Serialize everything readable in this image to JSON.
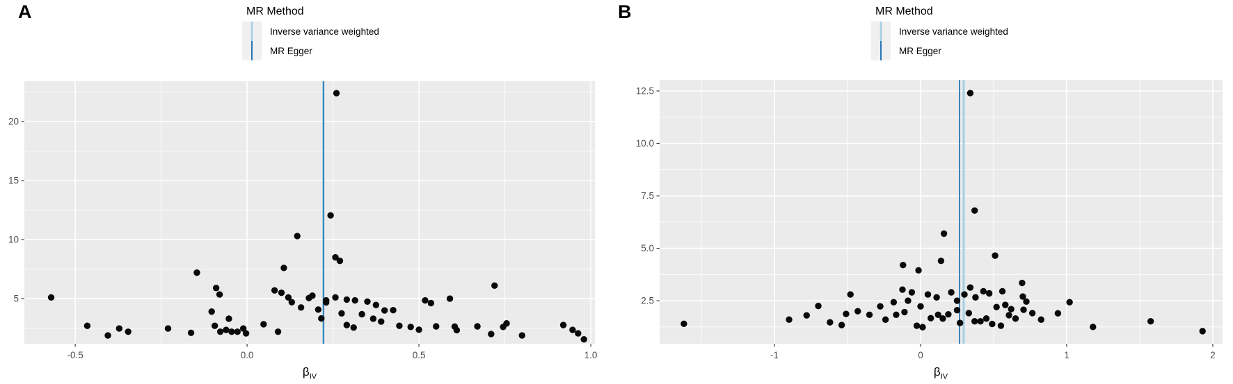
{
  "colors": {
    "background": "#ffffff",
    "panel_background": "#ebebeb",
    "grid": "#ffffff",
    "point": "#0a0a0a",
    "tick_text": "#4d4d4d",
    "tick_mark": "#333333",
    "ivw_line": "#a6cee3",
    "egger_line": "#2777b4",
    "legend_key_background": "#f0f0f0"
  },
  "panels": [
    {
      "label": "A",
      "legend_title": "MR Method",
      "legend_items": [
        {
          "label": "Inverse variance weighted",
          "color": "#a6cee3"
        },
        {
          "label": "MR Egger",
          "color": "#2777b4"
        }
      ],
      "xlabel_main": "β",
      "xlabel_sub": "IV"
    },
    {
      "label": "B",
      "legend_title": "MR Method",
      "legend_items": [
        {
          "label": "Inverse variance weighted",
          "color": "#a6cee3"
        },
        {
          "label": "MR Egger",
          "color": "#2777b4"
        }
      ],
      "xlabel_main": "β",
      "xlabel_sub": "IV"
    }
  ],
  "chart_data": [
    {
      "type": "scatter",
      "title": "A",
      "xlabel": "βIV",
      "ylabel": "",
      "legend_position": "top",
      "grid": true,
      "xlim": [
        -0.648,
        1.012
      ],
      "ylim": [
        1.18,
        23.41
      ],
      "xticks": [
        -0.5,
        0.0,
        0.5,
        1.0
      ],
      "xtick_labels": [
        "-0.5",
        "0.0",
        "0.5",
        "1.0"
      ],
      "yticks": [
        5,
        10,
        15,
        20
      ],
      "ytick_labels": [
        "5",
        "10",
        "15",
        "20"
      ],
      "x_minor": [
        -0.25,
        0.25,
        0.75
      ],
      "y_minor": [
        2.5,
        7.5,
        12.5,
        17.5,
        22.5
      ],
      "vlines": [
        {
          "name": "Inverse variance weighted",
          "x": 0.222,
          "color": "#a6cee3",
          "width": 3.2
        },
        {
          "name": "MR Egger",
          "x": 0.222,
          "color": "#2777b4",
          "width": 1.6
        }
      ],
      "points": [
        [
          0.26,
          22.4
        ],
        [
          0.243,
          12.05
        ],
        [
          0.146,
          10.3
        ],
        [
          0.257,
          8.5
        ],
        [
          0.27,
          8.2
        ],
        [
          0.107,
          7.6
        ],
        [
          -0.146,
          7.2
        ],
        [
          0.72,
          6.1
        ],
        [
          -0.09,
          5.9
        ],
        [
          0.08,
          5.7
        ],
        [
          0.1,
          5.5
        ],
        [
          -0.08,
          5.35
        ],
        [
          0.19,
          5.25
        ],
        [
          -0.57,
          5.1
        ],
        [
          0.12,
          5.1
        ],
        [
          0.257,
          5.1
        ],
        [
          0.18,
          5.05
        ],
        [
          0.59,
          5.0
        ],
        [
          0.23,
          4.85
        ],
        [
          0.29,
          4.92
        ],
        [
          0.314,
          4.85
        ],
        [
          0.35,
          4.75
        ],
        [
          0.518,
          4.85
        ],
        [
          0.13,
          4.7
        ],
        [
          0.23,
          4.68
        ],
        [
          0.535,
          4.62
        ],
        [
          0.375,
          4.46
        ],
        [
          0.157,
          4.25
        ],
        [
          0.207,
          4.07
        ],
        [
          0.4,
          4.0
        ],
        [
          0.425,
          4.02
        ],
        [
          -0.103,
          3.9
        ],
        [
          0.275,
          3.75
        ],
        [
          0.334,
          3.68
        ],
        [
          0.216,
          3.32
        ],
        [
          -0.053,
          3.3
        ],
        [
          0.367,
          3.3
        ],
        [
          0.39,
          3.06
        ],
        [
          0.048,
          2.83
        ],
        [
          0.92,
          2.76
        ],
        [
          0.29,
          2.76
        ],
        [
          -0.094,
          2.7
        ],
        [
          -0.465,
          2.7
        ],
        [
          0.443,
          2.7
        ],
        [
          0.55,
          2.65
        ],
        [
          0.67,
          2.65
        ],
        [
          0.604,
          2.63
        ],
        [
          0.745,
          2.6
        ],
        [
          0.476,
          2.6
        ],
        [
          0.755,
          2.9
        ],
        [
          0.31,
          2.55
        ],
        [
          -0.23,
          2.47
        ],
        [
          -0.372,
          2.47
        ],
        [
          -0.011,
          2.47
        ],
        [
          0.5,
          2.37
        ],
        [
          -0.061,
          2.35
        ],
        [
          0.947,
          2.35
        ],
        [
          0.61,
          2.33
        ],
        [
          -0.078,
          2.2
        ],
        [
          -0.045,
          2.2
        ],
        [
          -0.028,
          2.2
        ],
        [
          0.09,
          2.2
        ],
        [
          -0.346,
          2.2
        ],
        [
          -0.163,
          2.1
        ],
        [
          -0.003,
          2.06
        ],
        [
          0.963,
          2.06
        ],
        [
          0.71,
          2.0
        ],
        [
          -0.405,
          1.88
        ],
        [
          0.8,
          1.88
        ],
        [
          0.98,
          1.55
        ]
      ]
    },
    {
      "type": "scatter",
      "title": "B",
      "xlabel": "βIV",
      "ylabel": "",
      "legend_position": "top",
      "grid": true,
      "xlim": [
        -1.786,
        2.067
      ],
      "ylim": [
        0.45,
        13.03
      ],
      "xticks": [
        -1,
        0,
        1,
        2
      ],
      "xtick_labels": [
        "-1",
        "0",
        "1",
        "2"
      ],
      "yticks": [
        2.5,
        5.0,
        7.5,
        10.0,
        12.5
      ],
      "ytick_labels": [
        "2.5",
        "5.0",
        "7.5",
        "10.0",
        "12.5"
      ],
      "x_minor": [
        -1.5,
        -0.5,
        0.5,
        1.5
      ],
      "y_minor": [
        1.25,
        3.75,
        6.25,
        8.75,
        11.25
      ],
      "vlines": [
        {
          "name": "Inverse variance weighted",
          "x": 0.295,
          "color": "#a6cee3",
          "width": 3.0
        },
        {
          "name": "MR Egger",
          "x": 0.267,
          "color": "#2777b4",
          "width": 1.8
        }
      ],
      "points": [
        [
          0.34,
          12.4
        ],
        [
          0.37,
          6.8
        ],
        [
          0.16,
          5.7
        ],
        [
          0.51,
          4.65
        ],
        [
          0.14,
          4.4
        ],
        [
          -0.12,
          4.2
        ],
        [
          -0.014,
          3.95
        ],
        [
          0.695,
          3.35
        ],
        [
          0.34,
          3.13
        ],
        [
          -0.124,
          3.03
        ],
        [
          0.43,
          2.95
        ],
        [
          0.56,
          2.95
        ],
        [
          -0.48,
          2.8
        ],
        [
          0.05,
          2.8
        ],
        [
          0.47,
          2.85
        ],
        [
          -0.276,
          2.23
        ],
        [
          -0.7,
          2.25
        ],
        [
          0.11,
          2.66
        ],
        [
          0.376,
          2.66
        ],
        [
          0.7,
          2.7
        ],
        [
          0.724,
          2.46
        ],
        [
          -0.184,
          2.43
        ],
        [
          -0.086,
          2.5
        ],
        [
          0.25,
          2.5
        ],
        [
          -0.43,
          2.0
        ],
        [
          -0.35,
          1.83
        ],
        [
          -0.51,
          1.87
        ],
        [
          -0.54,
          1.34
        ],
        [
          -0.62,
          1.47
        ],
        [
          -0.78,
          1.8
        ],
        [
          -0.9,
          1.6
        ],
        [
          -1.62,
          1.4
        ],
        [
          -0.24,
          1.6
        ],
        [
          -0.167,
          1.83
        ],
        [
          -0.11,
          1.96
        ],
        [
          0.0,
          2.23
        ],
        [
          0.07,
          1.67
        ],
        [
          0.12,
          1.83
        ],
        [
          0.152,
          1.65
        ],
        [
          -0.026,
          1.31
        ],
        [
          0.014,
          1.24
        ],
        [
          0.19,
          1.85
        ],
        [
          0.25,
          2.05
        ],
        [
          0.27,
          1.44
        ],
        [
          0.33,
          1.91
        ],
        [
          0.37,
          1.52
        ],
        [
          0.41,
          1.52
        ],
        [
          0.45,
          1.65
        ],
        [
          0.49,
          1.39
        ],
        [
          0.55,
          1.31
        ],
        [
          0.605,
          1.81
        ],
        [
          0.65,
          1.65
        ],
        [
          0.705,
          2.07
        ],
        [
          0.765,
          1.91
        ],
        [
          0.825,
          1.6
        ],
        [
          0.94,
          1.9
        ],
        [
          1.02,
          2.43
        ],
        [
          1.18,
          1.25
        ],
        [
          1.575,
          1.52
        ],
        [
          1.93,
          1.05
        ],
        [
          0.52,
          2.2
        ],
        [
          0.58,
          2.3
        ],
        [
          0.62,
          2.1
        ],
        [
          0.3,
          2.8
        ],
        [
          0.21,
          2.9
        ],
        [
          -0.06,
          2.9
        ]
      ]
    }
  ]
}
